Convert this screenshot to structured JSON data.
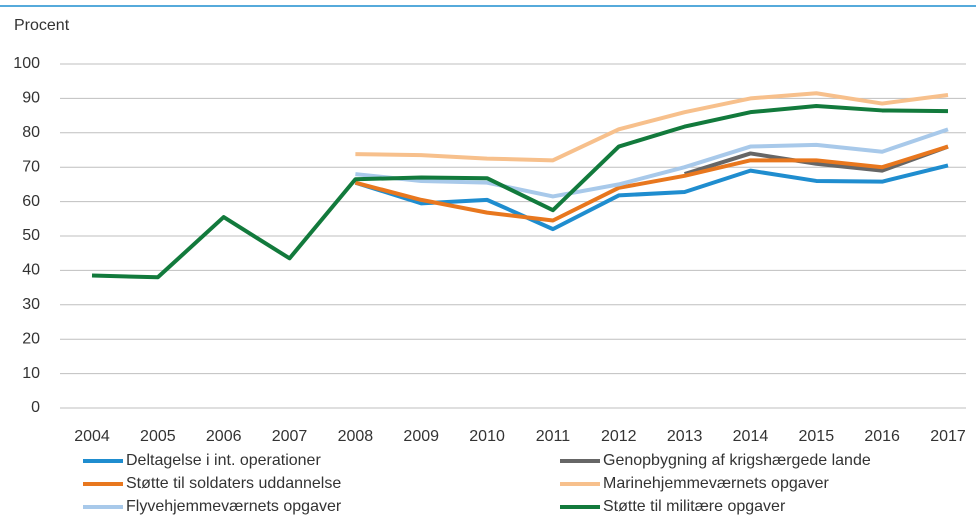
{
  "chart_data": {
    "type": "line",
    "ylabel": "Procent",
    "categories": [
      "2004",
      "2005",
      "2006",
      "2007",
      "2008",
      "2009",
      "2010",
      "2011",
      "2012",
      "2013",
      "2014",
      "2015",
      "2016",
      "2017"
    ],
    "series": [
      {
        "name": "Deltagelse i int. operationer",
        "color": "#1f8dcf",
        "values": [
          null,
          null,
          null,
          null,
          65.5,
          59.5,
          60.5,
          52,
          61.8,
          62.8,
          69,
          66,
          65.8,
          70.5
        ]
      },
      {
        "name": "Genopbygning af krigshærgede lande",
        "color": "#666666",
        "values": [
          null,
          null,
          null,
          null,
          null,
          null,
          null,
          null,
          null,
          68,
          74,
          71,
          69,
          76
        ]
      },
      {
        "name": "Støtte til soldaters uddannelse",
        "color": "#e8771e",
        "values": [
          null,
          null,
          null,
          null,
          65.5,
          60.5,
          56.8,
          54.5,
          64,
          67.5,
          72,
          72,
          70,
          76
        ]
      },
      {
        "name": "Marinehjemmeværnets opgaver",
        "color": "#f7c08c",
        "values": [
          null,
          null,
          null,
          null,
          73.8,
          73.5,
          72.5,
          72,
          81,
          86,
          90,
          91.5,
          88.5,
          91
        ]
      },
      {
        "name": "Flyvehjemmeværnets opgaver",
        "color": "#a8c9ea",
        "values": [
          null,
          null,
          null,
          null,
          68,
          66,
          65.5,
          61.5,
          65,
          70,
          76,
          76.5,
          74.5,
          81
        ]
      },
      {
        "name": "Støtte til militære opgaver",
        "color": "#127a3c",
        "values": [
          38.5,
          38,
          55.5,
          43.5,
          66.5,
          67,
          66.8,
          57.5,
          76,
          81.8,
          86,
          87.8,
          86.5,
          86.3
        ]
      }
    ],
    "ylim": [
      0,
      100
    ],
    "yticks": [
      0,
      10,
      20,
      30,
      40,
      50,
      60,
      70,
      80,
      90,
      100
    ],
    "grid": true
  }
}
